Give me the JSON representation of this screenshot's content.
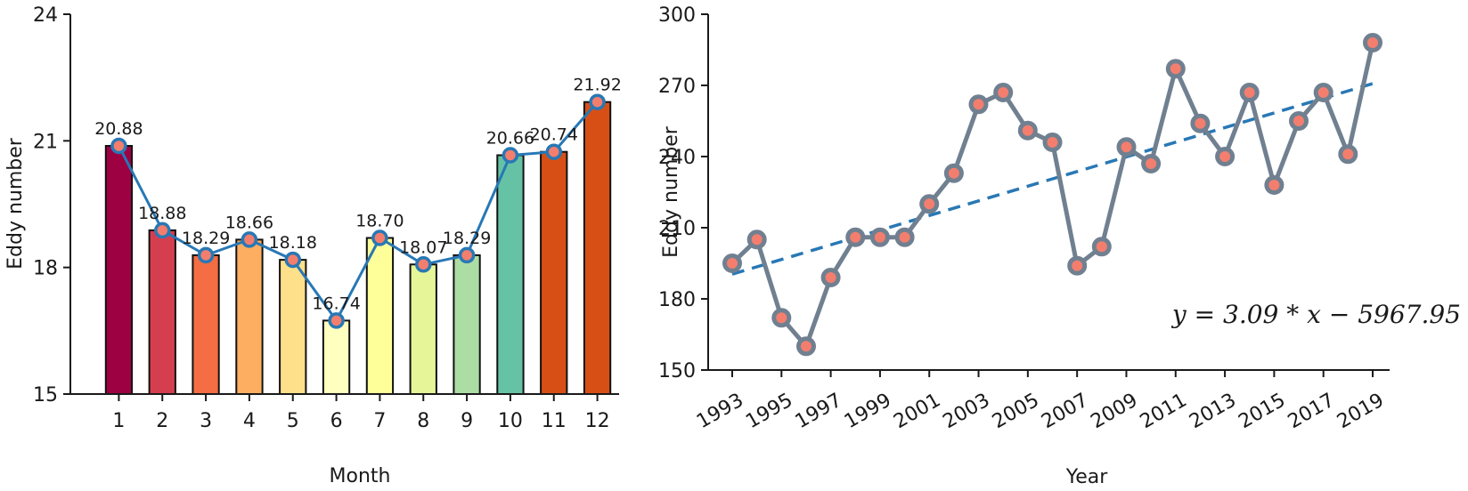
{
  "chart_data": [
    {
      "type": "bar",
      "xlabel": "Month",
      "ylabel": "Eddy number",
      "categories": [
        "1",
        "2",
        "3",
        "4",
        "5",
        "6",
        "7",
        "8",
        "9",
        "10",
        "11",
        "12"
      ],
      "values": [
        20.88,
        18.88,
        18.29,
        18.66,
        18.18,
        16.74,
        18.7,
        18.07,
        18.29,
        20.66,
        20.74,
        21.92
      ],
      "data_labels": [
        "20.88",
        "18.88",
        "18.29",
        "18.66",
        "18.18",
        "16.74",
        "18.70",
        "18.07",
        "18.29",
        "20.66",
        "20.74",
        "21.92"
      ],
      "ylim": [
        15,
        24
      ],
      "yticks": [
        15,
        18,
        21,
        24
      ],
      "bar_colors": [
        "#9e0142",
        "#d53e4f",
        "#f46d43",
        "#fdae61",
        "#fee08b",
        "#ffffbf",
        "#ffff9a",
        "#e6f598",
        "#abdda4",
        "#66c2a5",
        "#d84f16",
        "#d84f16"
      ],
      "overlay_line": {
        "color": "#2878b5",
        "marker_fill": "#f47e6e",
        "values_from": "values"
      },
      "grid": false
    },
    {
      "type": "line",
      "xlabel": "Year",
      "ylabel": "Eddy number",
      "x": [
        1993,
        1994,
        1995,
        1996,
        1997,
        1998,
        1999,
        2000,
        2001,
        2002,
        2003,
        2004,
        2005,
        2006,
        2007,
        2008,
        2009,
        2010,
        2011,
        2012,
        2013,
        2014,
        2015,
        2016,
        2017,
        2018,
        2019
      ],
      "y": [
        195,
        205,
        172,
        160,
        189,
        206,
        206,
        206,
        220,
        233,
        262,
        267,
        251,
        246,
        194,
        202,
        244,
        237,
        277,
        254,
        240,
        267,
        228,
        255,
        267,
        241,
        288
      ],
      "xticks": [
        "1993",
        "1995",
        "1997",
        "1999",
        "2001",
        "2003",
        "2005",
        "2007",
        "2009",
        "2011",
        "2013",
        "2015",
        "2017",
        "2019"
      ],
      "ylim": [
        150,
        300
      ],
      "yticks": [
        150,
        180,
        210,
        240,
        270,
        300
      ],
      "line_color": "#708090",
      "marker_fill": "#f47e6e",
      "trend": {
        "slope": 3.09,
        "intercept": -5967.95,
        "color": "#2878b5",
        "style": "dashed"
      },
      "annotation": "y = 3.09 * x − 5967.95",
      "grid": false
    }
  ],
  "colors": {
    "axis": "#1a1a1a"
  }
}
